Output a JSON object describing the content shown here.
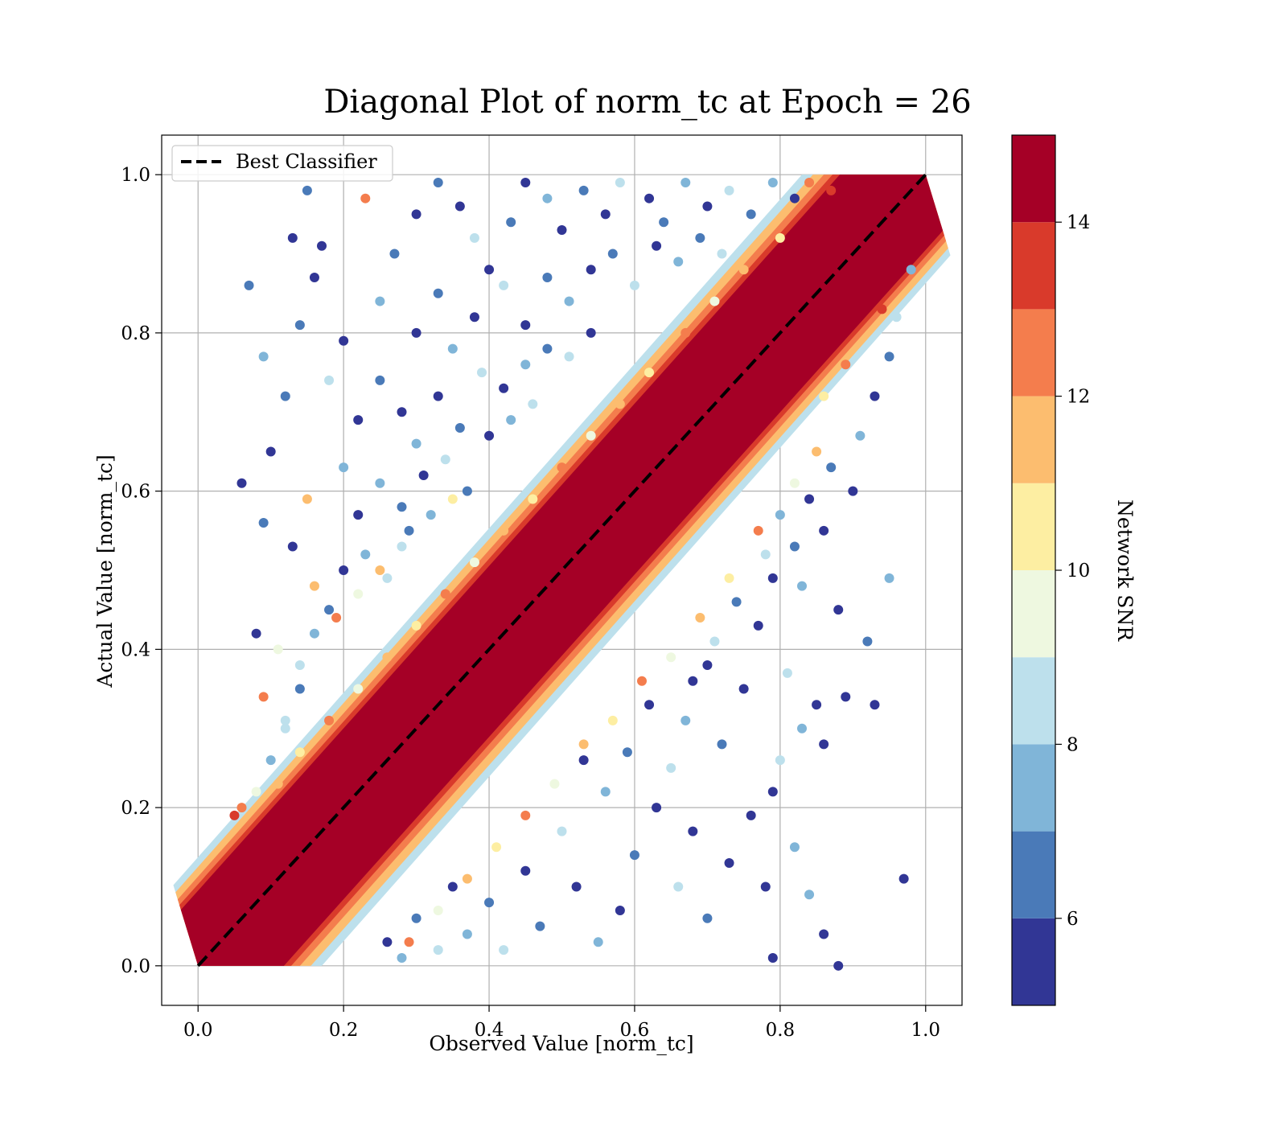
{
  "chart_data": {
    "type": "scatter",
    "title": "Diagonal Plot of norm_tc at Epoch = 26",
    "xlabel": "Observed Value [norm_tc]",
    "ylabel": "Actual Value [norm_tc]",
    "xlim": [
      -0.05,
      1.05
    ],
    "ylim": [
      -0.05,
      1.05
    ],
    "x_ticks": [
      0.0,
      0.2,
      0.4,
      0.6,
      0.8,
      1.0
    ],
    "y_ticks": [
      0.0,
      0.2,
      0.4,
      0.6,
      0.8,
      1.0
    ],
    "x_tick_labels": [
      "0.0",
      "0.2",
      "0.4",
      "0.6",
      "0.8",
      "1.0"
    ],
    "y_tick_labels": [
      "0.0",
      "0.2",
      "0.4",
      "0.6",
      "0.8",
      "1.0"
    ],
    "grid": true,
    "legend": {
      "placement": "top-left",
      "entries": [
        {
          "label": "Best Classifier",
          "style": "dashed",
          "color": "#000000"
        }
      ]
    },
    "reference_line": {
      "name": "Best Classifier",
      "x": [
        0.0,
        1.0
      ],
      "y": [
        0.0,
        1.0
      ]
    },
    "colorbar": {
      "label": "Network SNR",
      "range": [
        5,
        15
      ],
      "ticks": [
        6,
        8,
        10,
        12,
        14
      ],
      "tick_labels": [
        "6",
        "8",
        "10",
        "12",
        "14"
      ],
      "bands": [
        {
          "from": 5,
          "to": 6,
          "color": "#313695"
        },
        {
          "from": 6,
          "to": 7,
          "color": "#4a7ab8"
        },
        {
          "from": 7,
          "to": 8,
          "color": "#80b5d8"
        },
        {
          "from": 8,
          "to": 9,
          "color": "#bde0ec"
        },
        {
          "from": 9,
          "to": 10,
          "color": "#eef8e0"
        },
        {
          "from": 10,
          "to": 11,
          "color": "#fdeea2"
        },
        {
          "from": 11,
          "to": 12,
          "color": "#fcbd6f"
        },
        {
          "from": 12,
          "to": 13,
          "color": "#f47d4d"
        },
        {
          "from": 13,
          "to": 14,
          "color": "#d93a2b"
        },
        {
          "from": 14,
          "to": 15,
          "color": "#a50026"
        }
      ]
    },
    "points": [
      {
        "x": 0.05,
        "y": 0.19,
        "snr": 13.5
      },
      {
        "x": 0.07,
        "y": 0.86,
        "snr": 6.5
      },
      {
        "x": 0.09,
        "y": 0.77,
        "snr": 7.5
      },
      {
        "x": 0.06,
        "y": 0.61,
        "snr": 5.5
      },
      {
        "x": 0.13,
        "y": 0.92,
        "snr": 5.5
      },
      {
        "x": 0.15,
        "y": 0.98,
        "snr": 6.5
      },
      {
        "x": 0.23,
        "y": 0.97,
        "snr": 12.5
      },
      {
        "x": 0.17,
        "y": 0.91,
        "snr": 5.5
      },
      {
        "x": 0.16,
        "y": 0.87,
        "snr": 5.5
      },
      {
        "x": 0.14,
        "y": 0.81,
        "snr": 6.5
      },
      {
        "x": 0.12,
        "y": 0.72,
        "snr": 6.5
      },
      {
        "x": 0.1,
        "y": 0.65,
        "snr": 5.5
      },
      {
        "x": 0.15,
        "y": 0.59,
        "snr": 11.5
      },
      {
        "x": 0.09,
        "y": 0.56,
        "snr": 6.5
      },
      {
        "x": 0.13,
        "y": 0.53,
        "snr": 5.5
      },
      {
        "x": 0.16,
        "y": 0.48,
        "snr": 11.5
      },
      {
        "x": 0.08,
        "y": 0.42,
        "snr": 5.5
      },
      {
        "x": 0.09,
        "y": 0.34,
        "snr": 12.5
      },
      {
        "x": 0.11,
        "y": 0.4,
        "snr": 9.5
      },
      {
        "x": 0.12,
        "y": 0.3,
        "snr": 8.5
      },
      {
        "x": 0.2,
        "y": 0.63,
        "snr": 7.5
      },
      {
        "x": 0.22,
        "y": 0.69,
        "snr": 5.5
      },
      {
        "x": 0.18,
        "y": 0.74,
        "snr": 8.5
      },
      {
        "x": 0.2,
        "y": 0.79,
        "snr": 5.5
      },
      {
        "x": 0.25,
        "y": 0.84,
        "snr": 7.5
      },
      {
        "x": 0.27,
        "y": 0.9,
        "snr": 6.5
      },
      {
        "x": 0.3,
        "y": 0.95,
        "snr": 5.5
      },
      {
        "x": 0.33,
        "y": 0.99,
        "snr": 6.5
      },
      {
        "x": 0.36,
        "y": 0.96,
        "snr": 5.5
      },
      {
        "x": 0.38,
        "y": 0.92,
        "snr": 8.5
      },
      {
        "x": 0.4,
        "y": 0.88,
        "snr": 5.5
      },
      {
        "x": 0.43,
        "y": 0.94,
        "snr": 6.5
      },
      {
        "x": 0.45,
        "y": 0.99,
        "snr": 5.5
      },
      {
        "x": 0.48,
        "y": 0.97,
        "snr": 7.5
      },
      {
        "x": 0.5,
        "y": 0.93,
        "snr": 5.5
      },
      {
        "x": 0.53,
        "y": 0.98,
        "snr": 6.5
      },
      {
        "x": 0.56,
        "y": 0.95,
        "snr": 5.5
      },
      {
        "x": 0.58,
        "y": 0.99,
        "snr": 8.5
      },
      {
        "x": 0.62,
        "y": 0.97,
        "snr": 5.5
      },
      {
        "x": 0.64,
        "y": 0.94,
        "snr": 6.5
      },
      {
        "x": 0.67,
        "y": 0.99,
        "snr": 7.5
      },
      {
        "x": 0.7,
        "y": 0.96,
        "snr": 5.5
      },
      {
        "x": 0.73,
        "y": 0.98,
        "snr": 8.5
      },
      {
        "x": 0.76,
        "y": 0.95,
        "snr": 6.5
      },
      {
        "x": 0.79,
        "y": 0.99,
        "snr": 7.5
      },
      {
        "x": 0.82,
        "y": 0.97,
        "snr": 5.5
      },
      {
        "x": 0.84,
        "y": 0.99,
        "snr": 12.5
      },
      {
        "x": 0.87,
        "y": 0.98,
        "snr": 13.5
      },
      {
        "x": 0.3,
        "y": 0.8,
        "snr": 5.5
      },
      {
        "x": 0.33,
        "y": 0.85,
        "snr": 6.5
      },
      {
        "x": 0.35,
        "y": 0.78,
        "snr": 7.5
      },
      {
        "x": 0.38,
        "y": 0.82,
        "snr": 5.5
      },
      {
        "x": 0.42,
        "y": 0.86,
        "snr": 8.5
      },
      {
        "x": 0.45,
        "y": 0.81,
        "snr": 5.5
      },
      {
        "x": 0.48,
        "y": 0.87,
        "snr": 6.5
      },
      {
        "x": 0.51,
        "y": 0.84,
        "snr": 7.5
      },
      {
        "x": 0.54,
        "y": 0.88,
        "snr": 5.5
      },
      {
        "x": 0.57,
        "y": 0.9,
        "snr": 6.5
      },
      {
        "x": 0.6,
        "y": 0.86,
        "snr": 8.5
      },
      {
        "x": 0.63,
        "y": 0.91,
        "snr": 5.5
      },
      {
        "x": 0.66,
        "y": 0.89,
        "snr": 7.5
      },
      {
        "x": 0.69,
        "y": 0.92,
        "snr": 6.5
      },
      {
        "x": 0.72,
        "y": 0.9,
        "snr": 8.5
      },
      {
        "x": 0.25,
        "y": 0.74,
        "snr": 6.5
      },
      {
        "x": 0.28,
        "y": 0.7,
        "snr": 5.5
      },
      {
        "x": 0.3,
        "y": 0.66,
        "snr": 7.5
      },
      {
        "x": 0.33,
        "y": 0.72,
        "snr": 5.5
      },
      {
        "x": 0.36,
        "y": 0.68,
        "snr": 6.5
      },
      {
        "x": 0.39,
        "y": 0.75,
        "snr": 8.5
      },
      {
        "x": 0.42,
        "y": 0.73,
        "snr": 5.5
      },
      {
        "x": 0.45,
        "y": 0.76,
        "snr": 7.5
      },
      {
        "x": 0.48,
        "y": 0.78,
        "snr": 6.5
      },
      {
        "x": 0.51,
        "y": 0.77,
        "snr": 8.5
      },
      {
        "x": 0.54,
        "y": 0.8,
        "snr": 5.5
      },
      {
        "x": 0.22,
        "y": 0.57,
        "snr": 5.5
      },
      {
        "x": 0.25,
        "y": 0.61,
        "snr": 7.5
      },
      {
        "x": 0.28,
        "y": 0.58,
        "snr": 6.5
      },
      {
        "x": 0.31,
        "y": 0.62,
        "snr": 5.5
      },
      {
        "x": 0.34,
        "y": 0.64,
        "snr": 8.5
      },
      {
        "x": 0.37,
        "y": 0.6,
        "snr": 6.5
      },
      {
        "x": 0.4,
        "y": 0.67,
        "snr": 5.5
      },
      {
        "x": 0.43,
        "y": 0.69,
        "snr": 7.5
      },
      {
        "x": 0.46,
        "y": 0.71,
        "snr": 8.5
      },
      {
        "x": 0.18,
        "y": 0.45,
        "snr": 6.5
      },
      {
        "x": 0.2,
        "y": 0.5,
        "snr": 5.5
      },
      {
        "x": 0.23,
        "y": 0.52,
        "snr": 7.5
      },
      {
        "x": 0.26,
        "y": 0.49,
        "snr": 8.5
      },
      {
        "x": 0.29,
        "y": 0.55,
        "snr": 6.5
      },
      {
        "x": 0.32,
        "y": 0.57,
        "snr": 7.5
      },
      {
        "x": 0.35,
        "y": 0.59,
        "snr": 10.5
      },
      {
        "x": 0.14,
        "y": 0.38,
        "snr": 8.5
      },
      {
        "x": 0.16,
        "y": 0.42,
        "snr": 7.5
      },
      {
        "x": 0.19,
        "y": 0.44,
        "snr": 12.5
      },
      {
        "x": 0.22,
        "y": 0.47,
        "snr": 9.5
      },
      {
        "x": 0.25,
        "y": 0.5,
        "snr": 11.5
      },
      {
        "x": 0.28,
        "y": 0.53,
        "snr": 8.5
      },
      {
        "x": 0.1,
        "y": 0.26,
        "snr": 7.5
      },
      {
        "x": 0.12,
        "y": 0.31,
        "snr": 8.5
      },
      {
        "x": 0.14,
        "y": 0.35,
        "snr": 6.5
      },
      {
        "x": 0.08,
        "y": 0.22,
        "snr": 9.5
      },
      {
        "x": 0.06,
        "y": 0.2,
        "snr": 12.5
      },
      {
        "x": 0.97,
        "y": 0.11,
        "snr": 5.5
      },
      {
        "x": 0.93,
        "y": 0.33,
        "snr": 5.5
      },
      {
        "x": 0.89,
        "y": 0.34,
        "snr": 5.5
      },
      {
        "x": 0.92,
        "y": 0.41,
        "snr": 6.5
      },
      {
        "x": 0.95,
        "y": 0.49,
        "snr": 7.5
      },
      {
        "x": 0.88,
        "y": 0.45,
        "snr": 5.5
      },
      {
        "x": 0.85,
        "y": 0.33,
        "snr": 5.5
      },
      {
        "x": 0.86,
        "y": 0.28,
        "snr": 5.5
      },
      {
        "x": 0.83,
        "y": 0.3,
        "snr": 7.5
      },
      {
        "x": 0.81,
        "y": 0.37,
        "snr": 8.5
      },
      {
        "x": 0.79,
        "y": 0.22,
        "snr": 5.5
      },
      {
        "x": 0.8,
        "y": 0.26,
        "snr": 8.5
      },
      {
        "x": 0.76,
        "y": 0.19,
        "snr": 5.5
      },
      {
        "x": 0.78,
        "y": 0.1,
        "snr": 5.5
      },
      {
        "x": 0.82,
        "y": 0.15,
        "snr": 7.5
      },
      {
        "x": 0.84,
        "y": 0.09,
        "snr": 7.5
      },
      {
        "x": 0.86,
        "y": 0.04,
        "snr": 5.5
      },
      {
        "x": 0.79,
        "y": 0.01,
        "snr": 5.5
      },
      {
        "x": 0.88,
        "y": 0.0,
        "snr": 5.5
      },
      {
        "x": 0.73,
        "y": 0.13,
        "snr": 5.5
      },
      {
        "x": 0.7,
        "y": 0.06,
        "snr": 6.5
      },
      {
        "x": 0.68,
        "y": 0.17,
        "snr": 5.5
      },
      {
        "x": 0.66,
        "y": 0.1,
        "snr": 8.5
      },
      {
        "x": 0.63,
        "y": 0.2,
        "snr": 5.5
      },
      {
        "x": 0.6,
        "y": 0.14,
        "snr": 6.5
      },
      {
        "x": 0.58,
        "y": 0.07,
        "snr": 5.5
      },
      {
        "x": 0.55,
        "y": 0.03,
        "snr": 7.5
      },
      {
        "x": 0.52,
        "y": 0.1,
        "snr": 5.5
      },
      {
        "x": 0.5,
        "y": 0.17,
        "snr": 8.5
      },
      {
        "x": 0.47,
        "y": 0.05,
        "snr": 6.5
      },
      {
        "x": 0.45,
        "y": 0.12,
        "snr": 5.5
      },
      {
        "x": 0.42,
        "y": 0.02,
        "snr": 8.5
      },
      {
        "x": 0.4,
        "y": 0.08,
        "snr": 6.5
      },
      {
        "x": 0.37,
        "y": 0.04,
        "snr": 7.5
      },
      {
        "x": 0.35,
        "y": 0.1,
        "snr": 5.5
      },
      {
        "x": 0.33,
        "y": 0.02,
        "snr": 8.5
      },
      {
        "x": 0.3,
        "y": 0.06,
        "snr": 6.5
      },
      {
        "x": 0.28,
        "y": 0.01,
        "snr": 7.5
      },
      {
        "x": 0.26,
        "y": 0.03,
        "snr": 5.5
      },
      {
        "x": 0.75,
        "y": 0.35,
        "snr": 5.5
      },
      {
        "x": 0.72,
        "y": 0.28,
        "snr": 6.5
      },
      {
        "x": 0.7,
        "y": 0.38,
        "snr": 5.5
      },
      {
        "x": 0.67,
        "y": 0.31,
        "snr": 7.5
      },
      {
        "x": 0.65,
        "y": 0.25,
        "snr": 8.5
      },
      {
        "x": 0.62,
        "y": 0.33,
        "snr": 5.5
      },
      {
        "x": 0.59,
        "y": 0.27,
        "snr": 6.5
      },
      {
        "x": 0.56,
        "y": 0.22,
        "snr": 7.5
      },
      {
        "x": 0.53,
        "y": 0.26,
        "snr": 5.5
      },
      {
        "x": 0.77,
        "y": 0.43,
        "snr": 5.5
      },
      {
        "x": 0.74,
        "y": 0.46,
        "snr": 6.5
      },
      {
        "x": 0.71,
        "y": 0.41,
        "snr": 8.5
      },
      {
        "x": 0.68,
        "y": 0.36,
        "snr": 5.5
      },
      {
        "x": 0.79,
        "y": 0.49,
        "snr": 5.5
      },
      {
        "x": 0.82,
        "y": 0.53,
        "snr": 6.5
      },
      {
        "x": 0.8,
        "y": 0.57,
        "snr": 7.5
      },
      {
        "x": 0.84,
        "y": 0.59,
        "snr": 5.5
      },
      {
        "x": 0.86,
        "y": 0.55,
        "snr": 5.5
      },
      {
        "x": 0.78,
        "y": 0.52,
        "snr": 8.5
      },
      {
        "x": 0.83,
        "y": 0.48,
        "snr": 7.5
      },
      {
        "x": 0.9,
        "y": 0.6,
        "snr": 5.5
      },
      {
        "x": 0.87,
        "y": 0.63,
        "snr": 6.5
      },
      {
        "x": 0.91,
        "y": 0.67,
        "snr": 7.5
      },
      {
        "x": 0.93,
        "y": 0.72,
        "snr": 5.5
      },
      {
        "x": 0.95,
        "y": 0.77,
        "snr": 6.5
      },
      {
        "x": 0.96,
        "y": 0.82,
        "snr": 8.5
      },
      {
        "x": 0.94,
        "y": 0.83,
        "snr": 13.5
      },
      {
        "x": 0.98,
        "y": 0.88,
        "snr": 7.5
      },
      {
        "x": 0.89,
        "y": 0.76,
        "snr": 12.5
      },
      {
        "x": 0.86,
        "y": 0.72,
        "snr": 10.5
      },
      {
        "x": 0.85,
        "y": 0.65,
        "snr": 11.5
      },
      {
        "x": 0.82,
        "y": 0.61,
        "snr": 9.5
      },
      {
        "x": 0.77,
        "y": 0.55,
        "snr": 12.5
      },
      {
        "x": 0.73,
        "y": 0.49,
        "snr": 10.5
      },
      {
        "x": 0.69,
        "y": 0.44,
        "snr": 11.5
      },
      {
        "x": 0.65,
        "y": 0.39,
        "snr": 9.5
      },
      {
        "x": 0.61,
        "y": 0.36,
        "snr": 12.5
      },
      {
        "x": 0.57,
        "y": 0.31,
        "snr": 10.5
      },
      {
        "x": 0.53,
        "y": 0.28,
        "snr": 11.5
      },
      {
        "x": 0.49,
        "y": 0.23,
        "snr": 9.5
      },
      {
        "x": 0.45,
        "y": 0.19,
        "snr": 12.5
      },
      {
        "x": 0.41,
        "y": 0.15,
        "snr": 10.5
      },
      {
        "x": 0.37,
        "y": 0.11,
        "snr": 11.5
      },
      {
        "x": 0.33,
        "y": 0.07,
        "snr": 9.5
      },
      {
        "x": 0.29,
        "y": 0.03,
        "snr": 12.5
      },
      {
        "x": 0.8,
        "y": 0.92,
        "snr": 10.5
      },
      {
        "x": 0.75,
        "y": 0.88,
        "snr": 11.5
      },
      {
        "x": 0.71,
        "y": 0.84,
        "snr": 9.5
      },
      {
        "x": 0.67,
        "y": 0.8,
        "snr": 12.5
      },
      {
        "x": 0.62,
        "y": 0.75,
        "snr": 10.5
      },
      {
        "x": 0.58,
        "y": 0.71,
        "snr": 11.5
      },
      {
        "x": 0.54,
        "y": 0.67,
        "snr": 9.5
      },
      {
        "x": 0.5,
        "y": 0.63,
        "snr": 12.5
      },
      {
        "x": 0.46,
        "y": 0.59,
        "snr": 10.5
      },
      {
        "x": 0.42,
        "y": 0.55,
        "snr": 11.5
      },
      {
        "x": 0.38,
        "y": 0.51,
        "snr": 9.5
      },
      {
        "x": 0.34,
        "y": 0.47,
        "snr": 12.5
      },
      {
        "x": 0.3,
        "y": 0.43,
        "snr": 10.5
      },
      {
        "x": 0.26,
        "y": 0.39,
        "snr": 11.5
      },
      {
        "x": 0.22,
        "y": 0.35,
        "snr": 9.5
      },
      {
        "x": 0.18,
        "y": 0.31,
        "snr": 12.5
      },
      {
        "x": 0.14,
        "y": 0.27,
        "snr": 10.5
      },
      {
        "x": 0.11,
        "y": 0.23,
        "snr": 11.5
      }
    ]
  }
}
